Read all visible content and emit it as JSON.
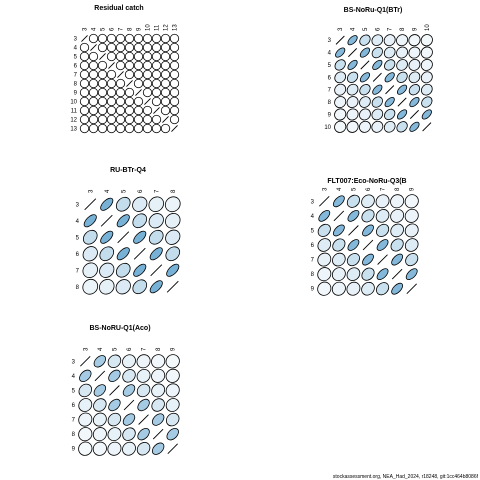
{
  "footer": "stockassessment.org, NEA_Had_2024, r18248, git:1cc464b8086f",
  "colors": {
    "ellipse_stroke": "#000000",
    "low": "#ffffff",
    "high": "#3b8ec4"
  },
  "chart_data": [
    {
      "type": "heatmap",
      "subtype": "correlation-ellipse-matrix",
      "title": "Residual catch",
      "ticks": [
        "3",
        "4",
        "5",
        "6",
        "7",
        "8",
        "9",
        "10",
        "11",
        "12",
        "13"
      ],
      "correlation": 0.0
    },
    {
      "type": "heatmap",
      "subtype": "correlation-ellipse-matrix",
      "title": "BS-NoRu-Q1(BTr)",
      "ticks": [
        "3",
        "4",
        "5",
        "6",
        "7",
        "8",
        "9",
        "10"
      ],
      "correlation": 0.55
    },
    {
      "type": "heatmap",
      "subtype": "correlation-ellipse-matrix",
      "title": "RU-BTr-Q4",
      "ticks": [
        "3",
        "4",
        "5",
        "6",
        "7",
        "8"
      ],
      "correlation": 0.6
    },
    {
      "type": "heatmap",
      "subtype": "correlation-ellipse-matrix",
      "title": "FLT007:Eco-NoRu-Q3(B",
      "ticks": [
        "3",
        "4",
        "5",
        "6",
        "7",
        "8",
        "9"
      ],
      "correlation": 0.55
    },
    {
      "type": "heatmap",
      "subtype": "correlation-ellipse-matrix",
      "title": "BS-NoRU-Q1(Aco)",
      "ticks": [
        "3",
        "4",
        "5",
        "6",
        "7",
        "8",
        "9"
      ],
      "correlation": 0.4
    }
  ]
}
